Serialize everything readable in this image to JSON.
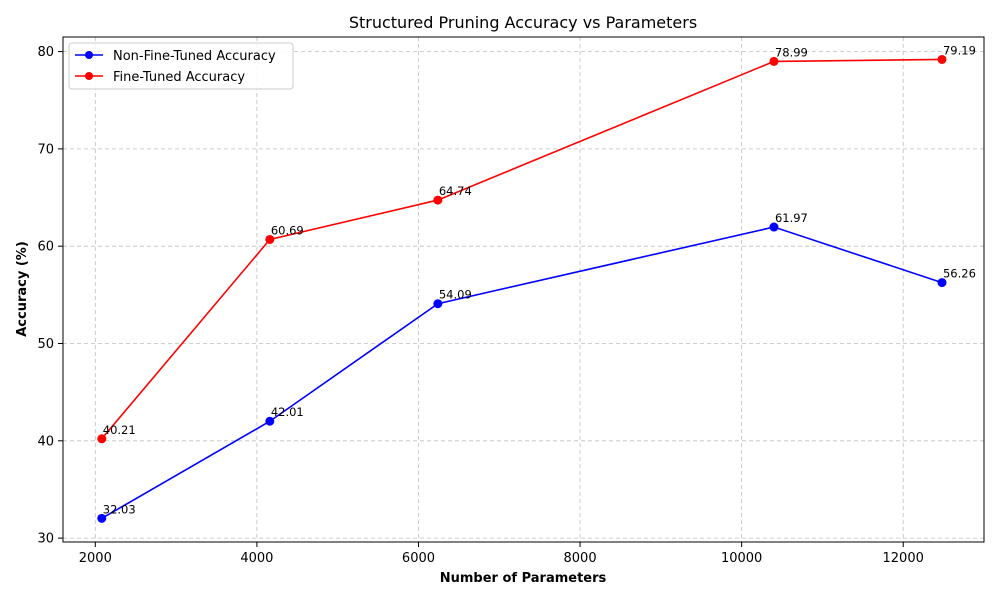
{
  "chart_data": {
    "type": "line",
    "title": "Structured Pruning Accuracy vs Parameters",
    "xlabel": "Number of Parameters",
    "ylabel": "Accuracy (%)",
    "xlim": [
      1600,
      13000
    ],
    "ylim": [
      29.6,
      81.5
    ],
    "xticks": [
      2000,
      4000,
      6000,
      8000,
      10000,
      12000
    ],
    "yticks": [
      30,
      40,
      50,
      60,
      70,
      80
    ],
    "grid": true,
    "legend_position": "top-left",
    "series": [
      {
        "name": "Non-Fine-Tuned Accuracy",
        "color": "#0000ff",
        "x": [
          2080,
          4160,
          6240,
          10400,
          12480
        ],
        "y": [
          32.03,
          42.01,
          54.09,
          61.97,
          56.26
        ],
        "labels": [
          "32.03",
          "42.01",
          "54.09",
          "61.97",
          "56.26"
        ]
      },
      {
        "name": "Fine-Tuned Accuracy",
        "color": "#ff0000",
        "x": [
          2080,
          4160,
          6240,
          10400,
          12480
        ],
        "y": [
          40.21,
          60.69,
          64.74,
          78.99,
          79.19
        ],
        "labels": [
          "40.21",
          "60.69",
          "64.74",
          "78.99",
          "79.19"
        ]
      }
    ]
  }
}
